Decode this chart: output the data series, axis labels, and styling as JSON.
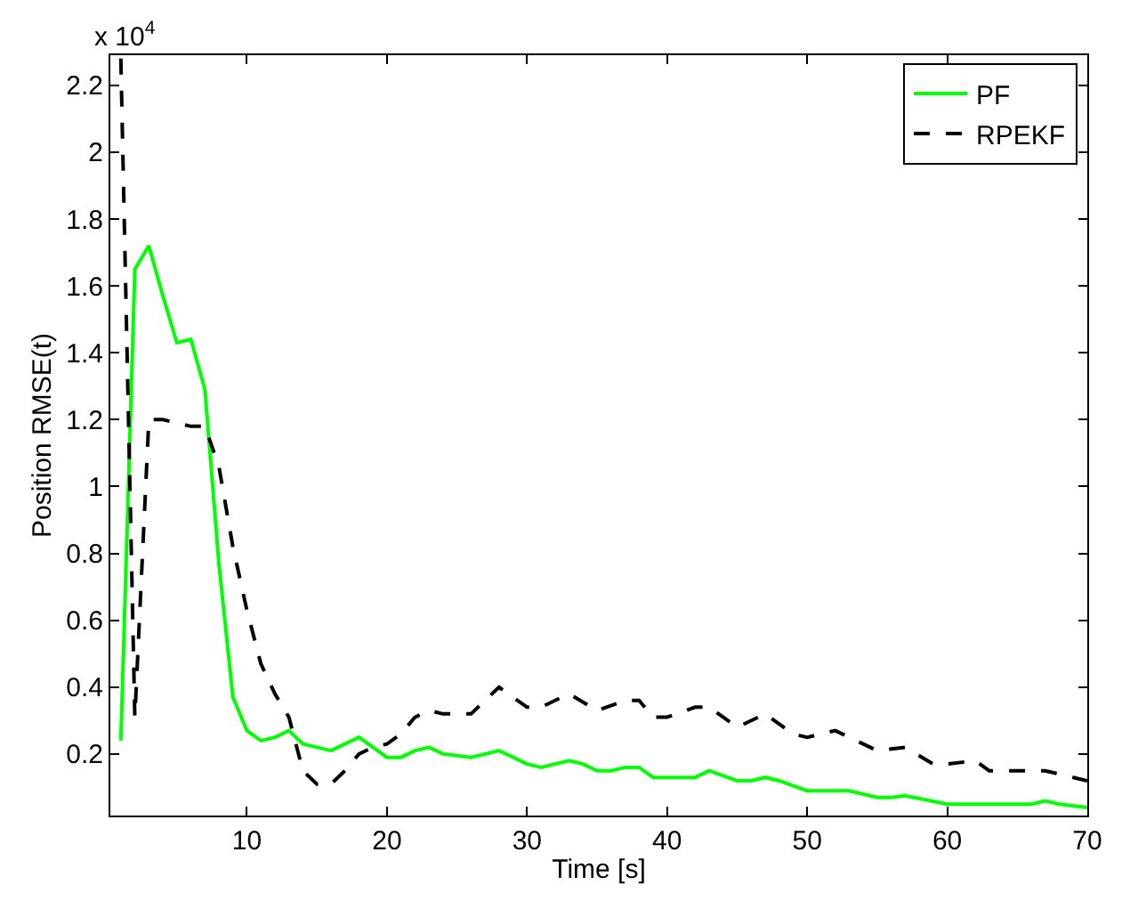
{
  "chart_data": {
    "type": "line",
    "xlabel": "Time [s]",
    "ylabel": "Position RMSE(t)",
    "annotations": [
      "x 10$^{4}$"
    ],
    "xlim": [
      0.25,
      70
    ],
    "xticks": [
      10,
      20,
      30,
      40,
      50,
      60,
      70
    ],
    "ylim": [
      0.016,
      2.29
    ],
    "yticks": [
      0.2,
      0.4,
      0.6,
      0.8,
      1,
      1.2,
      1.4,
      1.6,
      1.8,
      2,
      2.2
    ],
    "grid": false,
    "legend": "top right",
    "series": [
      {
        "name": "PF",
        "color": "#00ff00",
        "line_style": "solid",
        "x": [
          1,
          2,
          3,
          4,
          5,
          6,
          7,
          8,
          9,
          10,
          11,
          12,
          13,
          14,
          15,
          16,
          17,
          18,
          19,
          20,
          21,
          22,
          23,
          24,
          26,
          28,
          30,
          31,
          33,
          34,
          35,
          36,
          37,
          38,
          39,
          41,
          42,
          43,
          45,
          46,
          47,
          48,
          50,
          52,
          53,
          55,
          56,
          57,
          60,
          65,
          66,
          67,
          68,
          70
        ],
        "values": [
          0.24,
          1.65,
          1.72,
          1.57,
          1.43,
          1.44,
          1.29,
          0.77,
          0.37,
          0.27,
          0.24,
          0.25,
          0.27,
          0.23,
          0.22,
          0.21,
          0.23,
          0.25,
          0.22,
          0.19,
          0.19,
          0.21,
          0.22,
          0.2,
          0.19,
          0.21,
          0.17,
          0.16,
          0.18,
          0.17,
          0.15,
          0.15,
          0.16,
          0.16,
          0.13,
          0.13,
          0.13,
          0.15,
          0.12,
          0.12,
          0.13,
          0.12,
          0.09,
          0.09,
          0.09,
          0.07,
          0.07,
          0.075,
          0.05,
          0.05,
          0.05,
          0.06,
          0.05,
          0.04
        ]
      },
      {
        "name": "RPEKF",
        "color": "#000000",
        "line_style": "dashed",
        "x": [
          1,
          2,
          3,
          4,
          5,
          6,
          7,
          8,
          9,
          10,
          11,
          12,
          13,
          14,
          15,
          16,
          17,
          18,
          19,
          20,
          21,
          22,
          23,
          24,
          26,
          28,
          30,
          31,
          33,
          35,
          37,
          38,
          39,
          40,
          42,
          43,
          45,
          47,
          49,
          50,
          52,
          54,
          55,
          57,
          59,
          60,
          62,
          63,
          65,
          67,
          69,
          70
        ],
        "values": [
          2.28,
          0.31,
          1.2,
          1.2,
          1.19,
          1.18,
          1.18,
          1.06,
          0.82,
          0.63,
          0.47,
          0.38,
          0.31,
          0.15,
          0.11,
          0.11,
          0.15,
          0.2,
          0.22,
          0.23,
          0.26,
          0.31,
          0.33,
          0.32,
          0.32,
          0.4,
          0.34,
          0.34,
          0.38,
          0.33,
          0.36,
          0.36,
          0.31,
          0.31,
          0.34,
          0.34,
          0.28,
          0.32,
          0.26,
          0.25,
          0.27,
          0.23,
          0.21,
          0.22,
          0.17,
          0.17,
          0.18,
          0.15,
          0.15,
          0.15,
          0.13,
          0.12
        ]
      }
    ]
  }
}
